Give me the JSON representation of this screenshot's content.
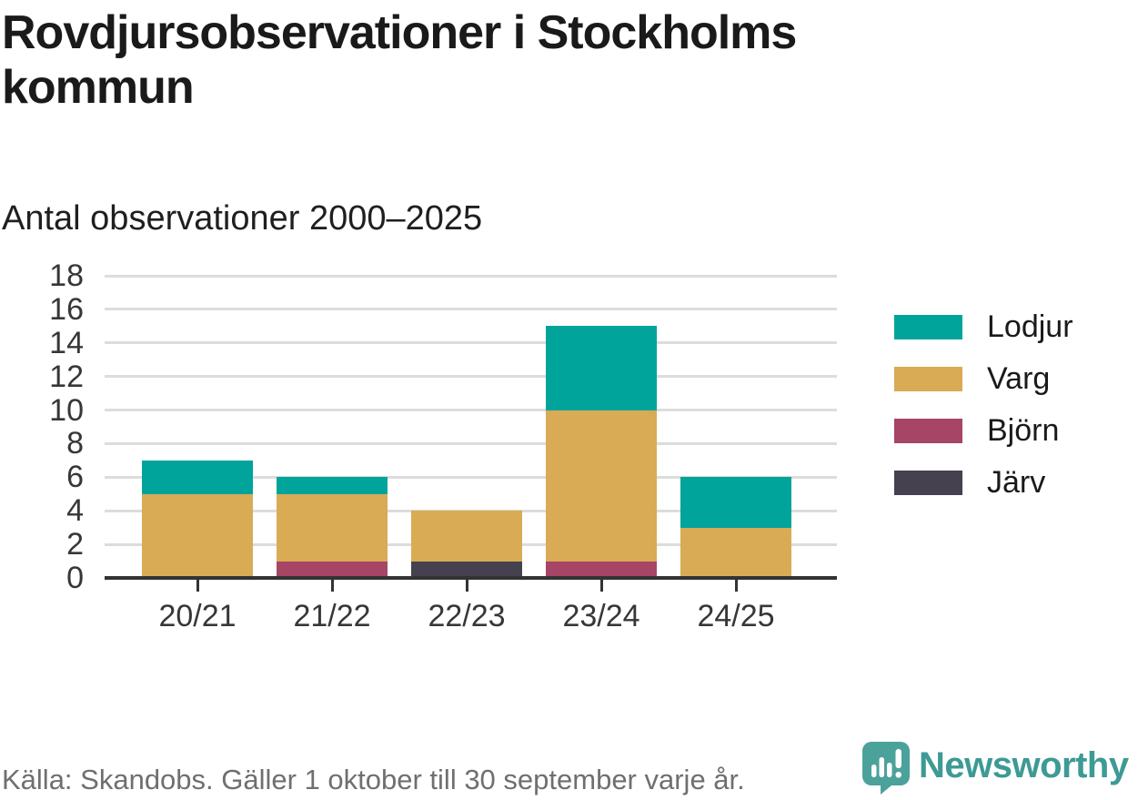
{
  "page": {
    "title": "Rovdjursobservationer i Stockholms kommun",
    "subtitle": "Antal observationer 2000–2025",
    "source": "Källa: Skandobs. Gäller 1 oktober till 30 september varje år.",
    "brand": {
      "name": "Newsworthy",
      "icon": "bar-chart-speech-bubble-icon",
      "text_color": "#3D9A94",
      "icon_color": "#4BA29B"
    }
  },
  "colors": {
    "title_text": "#1A1A1A",
    "axis_text": "#373737",
    "gridline": "#DCDCDC",
    "axis_line": "#333333",
    "source_text": "#706F6F",
    "background": "#FFFFFF"
  },
  "chart_data": {
    "type": "bar",
    "stacked": true,
    "title": "Rovdjursobservationer i Stockholms kommun",
    "subtitle": "Antal observationer 2000–2025",
    "categories": [
      "20/21",
      "21/22",
      "22/23",
      "23/24",
      "24/25"
    ],
    "series": [
      {
        "name": "Lodjur",
        "color": "#00A49B",
        "values": [
          2,
          1,
          0,
          5,
          3
        ]
      },
      {
        "name": "Varg",
        "color": "#D9AB55",
        "values": [
          5,
          4,
          3,
          9,
          3
        ]
      },
      {
        "name": "Björn",
        "color": "#A64565",
        "values": [
          0,
          1,
          0,
          1,
          0
        ]
      },
      {
        "name": "Järv",
        "color": "#45414E",
        "values": [
          0,
          0,
          1,
          0,
          0
        ]
      }
    ],
    "stack_order_bottom_to_top": [
      "Järv",
      "Björn",
      "Varg",
      "Lodjur"
    ],
    "totals": [
      7,
      6,
      4,
      15,
      6
    ],
    "ylim": [
      0,
      18
    ],
    "ytick_step": 2,
    "xlabel": "",
    "ylabel": "",
    "grid": "horizontal",
    "legend_position": "right"
  }
}
